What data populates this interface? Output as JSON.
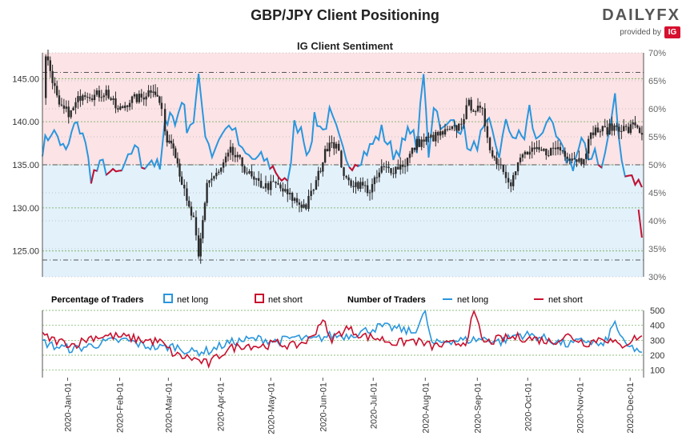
{
  "header": {
    "title": "GBP/JPY Client Positioning",
    "subtitle": "IG Client Sentiment",
    "brand_name": "DAILYFX",
    "brand_provided_by": "provided by",
    "brand_ig": "IG"
  },
  "legend": {
    "percentage_label": "Percentage of Traders",
    "pct_net_long": "net long",
    "pct_net_short": "net short",
    "number_label": "Number of Traders",
    "num_net_long": "net long",
    "num_net_short": "net short"
  },
  "colors": {
    "net_long": "#2a96dd",
    "net_short": "#c8102e",
    "long_fill": "#e3f1fb",
    "short_fill": "#fbe3e6",
    "price": "#2b2b2b",
    "grid": "#6aaa50"
  },
  "chart_data": [
    {
      "type": "line",
      "title": "IG Client Sentiment",
      "price_axis": {
        "ticks": [
          125.0,
          130.0,
          135.0,
          140.0,
          145.0
        ],
        "labels": [
          "125.00",
          "130.00",
          "135.00",
          "140.00",
          "145.00"
        ],
        "ylim": [
          122,
          148
        ]
      },
      "percent_axis": {
        "ticks": [
          30,
          35,
          40,
          45,
          50,
          55,
          60,
          65,
          70
        ],
        "labels": [
          "30%",
          "35%",
          "40%",
          "45%",
          "50%",
          "55%",
          "60%",
          "65%",
          "70%"
        ],
        "ylim": [
          30,
          70
        ]
      },
      "reference_lines": [
        66.5,
        50,
        33
      ],
      "price_keypoints": [
        [
          "2019-12-17",
          143.0
        ],
        [
          "2019-12-19",
          147.9
        ],
        [
          "2019-12-23",
          145.0
        ],
        [
          "2019-12-27",
          141.5
        ],
        [
          "2020-01-03",
          141.0
        ],
        [
          "2020-01-10",
          143.5
        ],
        [
          "2020-01-17",
          143.0
        ],
        [
          "2020-01-24",
          143.5
        ],
        [
          "2020-01-31",
          141.2
        ],
        [
          "2020-02-07",
          142.5
        ],
        [
          "2020-02-14",
          142.8
        ],
        [
          "2020-02-21",
          144.0
        ],
        [
          "2020-02-26",
          141.5
        ],
        [
          "2020-02-28",
          138.3
        ],
        [
          "2020-03-04",
          137.5
        ],
        [
          "2020-03-09",
          133.0
        ],
        [
          "2020-03-12",
          130.5
        ],
        [
          "2020-03-16",
          128.5
        ],
        [
          "2020-03-19",
          124.0
        ],
        [
          "2020-03-24",
          133.0
        ],
        [
          "2020-03-31",
          134.0
        ],
        [
          "2020-04-07",
          136.5
        ],
        [
          "2020-04-14",
          135.0
        ],
        [
          "2020-04-21",
          133.0
        ],
        [
          "2020-04-28",
          132.5
        ],
        [
          "2020-05-04",
          132.7
        ],
        [
          "2020-05-11",
          131.5
        ],
        [
          "2020-05-18",
          130.5
        ],
        [
          "2020-05-22",
          130.2
        ],
        [
          "2020-05-28",
          133.0
        ],
        [
          "2020-06-01",
          135.5
        ],
        [
          "2020-06-05",
          138.0
        ],
        [
          "2020-06-09",
          137.2
        ],
        [
          "2020-06-15",
          133.0
        ],
        [
          "2020-06-22",
          132.8
        ],
        [
          "2020-06-29",
          132.0
        ],
        [
          "2020-07-06",
          134.5
        ],
        [
          "2020-07-13",
          134.5
        ],
        [
          "2020-07-20",
          135.2
        ],
        [
          "2020-07-27",
          137.5
        ],
        [
          "2020-08-03",
          138.0
        ],
        [
          "2020-08-10",
          138.5
        ],
        [
          "2020-08-17",
          139.0
        ],
        [
          "2020-08-21",
          139.5
        ],
        [
          "2020-08-27",
          142.0
        ],
        [
          "2020-08-31",
          141.5
        ],
        [
          "2020-09-04",
          141.0
        ],
        [
          "2020-09-10",
          136.0
        ],
        [
          "2020-09-15",
          135.0
        ],
        [
          "2020-09-21",
          133.0
        ],
        [
          "2020-09-28",
          136.2
        ],
        [
          "2020-10-05",
          136.5
        ],
        [
          "2020-10-12",
          136.5
        ],
        [
          "2020-10-19",
          137.0
        ],
        [
          "2020-10-26",
          136.0
        ],
        [
          "2020-11-02",
          135.5
        ],
        [
          "2020-11-09",
          139.0
        ],
        [
          "2020-11-16",
          139.0
        ],
        [
          "2020-11-23",
          139.5
        ],
        [
          "2020-11-30",
          139.0
        ],
        [
          "2020-12-04",
          139.8
        ],
        [
          "2020-12-08",
          138.5
        ]
      ],
      "net_long_pct_keypoints": [
        [
          "2019-12-17",
          53
        ],
        [
          "2019-12-22",
          56
        ],
        [
          "2019-12-26",
          55
        ],
        [
          "2019-12-31",
          52
        ],
        [
          "2020-01-05",
          57
        ],
        [
          "2020-01-10",
          56
        ],
        [
          "2020-01-15",
          48
        ],
        [
          "2020-01-22",
          50
        ],
        [
          "2020-01-28",
          48
        ],
        [
          "2020-02-04",
          49
        ],
        [
          "2020-02-10",
          54
        ],
        [
          "2020-02-14",
          50
        ],
        [
          "2020-02-20",
          51
        ],
        [
          "2020-02-25",
          49
        ],
        [
          "2020-02-28",
          57
        ],
        [
          "2020-03-02",
          60
        ],
        [
          "2020-03-05",
          57
        ],
        [
          "2020-03-09",
          62
        ],
        [
          "2020-03-12",
          57
        ],
        [
          "2020-03-16",
          58
        ],
        [
          "2020-03-19",
          65
        ],
        [
          "2020-03-23",
          56
        ],
        [
          "2020-03-27",
          52
        ],
        [
          "2020-04-02",
          56
        ],
        [
          "2020-04-08",
          57
        ],
        [
          "2020-04-14",
          52
        ],
        [
          "2020-04-20",
          51
        ],
        [
          "2020-04-27",
          51
        ],
        [
          "2020-05-04",
          49
        ],
        [
          "2020-05-11",
          46
        ],
        [
          "2020-05-15",
          57
        ],
        [
          "2020-05-19",
          57
        ],
        [
          "2020-05-24",
          51
        ],
        [
          "2020-05-27",
          59
        ],
        [
          "2020-06-01",
          56
        ],
        [
          "2020-06-05",
          59
        ],
        [
          "2020-06-09",
          56
        ],
        [
          "2020-06-15",
          50
        ],
        [
          "2020-06-22",
          51
        ],
        [
          "2020-06-29",
          53
        ],
        [
          "2020-07-06",
          56
        ],
        [
          "2020-07-13",
          52
        ],
        [
          "2020-07-20",
          54
        ],
        [
          "2020-07-23",
          57
        ],
        [
          "2020-07-27",
          53
        ],
        [
          "2020-07-31",
          66
        ],
        [
          "2020-08-03",
          52
        ],
        [
          "2020-08-06",
          61
        ],
        [
          "2020-08-12",
          56
        ],
        [
          "2020-08-18",
          58
        ],
        [
          "2020-08-24",
          56
        ],
        [
          "2020-08-28",
          52
        ],
        [
          "2020-09-03",
          55
        ],
        [
          "2020-09-08",
          57
        ],
        [
          "2020-09-14",
          52
        ],
        [
          "2020-09-18",
          57
        ],
        [
          "2020-09-24",
          55
        ],
        [
          "2020-09-29",
          55
        ],
        [
          "2020-10-02",
          60
        ],
        [
          "2020-10-06",
          54
        ],
        [
          "2020-10-12",
          58
        ],
        [
          "2020-10-16",
          56
        ],
        [
          "2020-10-22",
          52
        ],
        [
          "2020-10-28",
          50
        ],
        [
          "2020-11-02",
          54
        ],
        [
          "2020-11-06",
          51
        ],
        [
          "2020-11-10",
          53
        ],
        [
          "2020-11-14",
          49
        ],
        [
          "2020-11-18",
          55
        ],
        [
          "2020-11-22",
          62
        ],
        [
          "2020-11-26",
          50
        ],
        [
          "2020-12-02",
          48
        ],
        [
          "2020-12-08",
          46
        ]
      ],
      "net_short_pct_keypoints": [
        [
          "2020-12-06",
          42
        ],
        [
          "2020-12-08",
          37
        ]
      ]
    },
    {
      "type": "line",
      "title": "Number of Traders",
      "y_axis": {
        "ticks": [
          100,
          200,
          300,
          400,
          500
        ],
        "labels": [
          "100",
          "200",
          "300",
          "400",
          "500"
        ],
        "ylim": [
          50,
          500
        ]
      },
      "x_axis": {
        "labels": [
          "2020-Jan-01",
          "2020-Feb-01",
          "2020-Mar-01",
          "2020-Apr-01",
          "2020-May-01",
          "2020-Jun-01",
          "2020-Jul-01",
          "2020-Aug-01",
          "2020-Sep-01",
          "2020-Oct-01",
          "2020-Nov-01",
          "2020-Dec-01"
        ]
      },
      "net_long_keypoints": [
        [
          "2019-12-17",
          290
        ],
        [
          "2019-12-24",
          260
        ],
        [
          "2020-01-05",
          240
        ],
        [
          "2020-01-15",
          265
        ],
        [
          "2020-01-25",
          290
        ],
        [
          "2020-02-05",
          300
        ],
        [
          "2020-02-15",
          265
        ],
        [
          "2020-02-25",
          250
        ],
        [
          "2020-03-05",
          260
        ],
        [
          "2020-03-15",
          220
        ],
        [
          "2020-03-25",
          230
        ],
        [
          "2020-04-05",
          280
        ],
        [
          "2020-04-15",
          300
        ],
        [
          "2020-04-25",
          310
        ],
        [
          "2020-05-05",
          290
        ],
        [
          "2020-05-15",
          320
        ],
        [
          "2020-05-25",
          300
        ],
        [
          "2020-06-05",
          330
        ],
        [
          "2020-06-15",
          330
        ],
        [
          "2020-06-25",
          360
        ],
        [
          "2020-07-05",
          390
        ],
        [
          "2020-07-15",
          380
        ],
        [
          "2020-07-25",
          350
        ],
        [
          "2020-08-01",
          490
        ],
        [
          "2020-08-05",
          270
        ],
        [
          "2020-08-15",
          300
        ],
        [
          "2020-08-25",
          300
        ],
        [
          "2020-09-05",
          310
        ],
        [
          "2020-09-15",
          290
        ],
        [
          "2020-09-25",
          340
        ],
        [
          "2020-10-05",
          330
        ],
        [
          "2020-10-15",
          300
        ],
        [
          "2020-10-25",
          270
        ],
        [
          "2020-11-05",
          300
        ],
        [
          "2020-11-15",
          260
        ],
        [
          "2020-11-22",
          420
        ],
        [
          "2020-11-28",
          260
        ],
        [
          "2020-12-05",
          240
        ],
        [
          "2020-12-08",
          220
        ]
      ],
      "net_short_keypoints": [
        [
          "2019-12-17",
          330
        ],
        [
          "2019-12-24",
          300
        ],
        [
          "2020-01-05",
          270
        ],
        [
          "2020-01-15",
          320
        ],
        [
          "2020-01-25",
          330
        ],
        [
          "2020-02-05",
          320
        ],
        [
          "2020-02-15",
          300
        ],
        [
          "2020-02-25",
          290
        ],
        [
          "2020-03-05",
          200
        ],
        [
          "2020-03-15",
          180
        ],
        [
          "2020-03-25",
          140
        ],
        [
          "2020-04-05",
          240
        ],
        [
          "2020-04-15",
          270
        ],
        [
          "2020-04-25",
          260
        ],
        [
          "2020-05-05",
          280
        ],
        [
          "2020-05-15",
          260
        ],
        [
          "2020-05-25",
          310
        ],
        [
          "2020-06-01",
          450
        ],
        [
          "2020-06-05",
          300
        ],
        [
          "2020-06-15",
          380
        ],
        [
          "2020-06-25",
          330
        ],
        [
          "2020-07-05",
          310
        ],
        [
          "2020-07-15",
          280
        ],
        [
          "2020-07-25",
          300
        ],
        [
          "2020-08-05",
          260
        ],
        [
          "2020-08-15",
          270
        ],
        [
          "2020-08-25",
          290
        ],
        [
          "2020-08-30",
          480
        ],
        [
          "2020-09-05",
          280
        ],
        [
          "2020-09-15",
          310
        ],
        [
          "2020-09-25",
          320
        ],
        [
          "2020-10-05",
          310
        ],
        [
          "2020-10-15",
          290
        ],
        [
          "2020-10-25",
          330
        ],
        [
          "2020-11-05",
          280
        ],
        [
          "2020-11-15",
          320
        ],
        [
          "2020-11-25",
          260
        ],
        [
          "2020-12-05",
          320
        ],
        [
          "2020-12-08",
          330
        ]
      ]
    }
  ]
}
